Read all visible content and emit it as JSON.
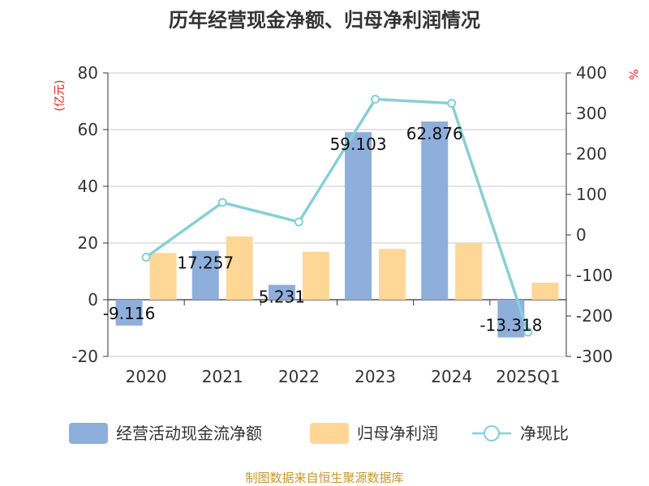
{
  "chart_data": {
    "type": "bar",
    "title": "历年经营现金净额、归母净利润情况",
    "categories": [
      "2020",
      "2021",
      "2022",
      "2023",
      "2024",
      "2025Q1"
    ],
    "series": [
      {
        "name": "经营活动现金流净额",
        "type": "bar",
        "axis": "left",
        "color": "#8eaedb",
        "values": [
          -9.116,
          17.257,
          5.231,
          59.103,
          62.876,
          -13.318
        ],
        "labels": [
          "-9.116",
          "17.257",
          "5.231",
          "59.103",
          "62.876",
          "-13.318"
        ]
      },
      {
        "name": "归母净利润",
        "type": "bar",
        "axis": "left",
        "color": "#fed797",
        "values": [
          16.5,
          22.3,
          16.9,
          17.9,
          19.8,
          6.0
        ]
      },
      {
        "name": "净现比",
        "type": "line",
        "axis": "right",
        "color": "#85d0d6",
        "values": [
          -55,
          80,
          32,
          335,
          325,
          -240
        ]
      }
    ],
    "y_left": {
      "unit": "(亿元)",
      "min": -20,
      "max": 80,
      "ticks": [
        -20,
        0,
        20,
        40,
        60,
        80
      ]
    },
    "y_right": {
      "unit": "%",
      "min": -300,
      "max": 400,
      "ticks": [
        -300,
        -200,
        -100,
        0,
        100,
        200,
        300,
        400
      ]
    },
    "grid": true,
    "legend_position": "bottom"
  },
  "source": "制图数据来自恒生聚源数据库"
}
